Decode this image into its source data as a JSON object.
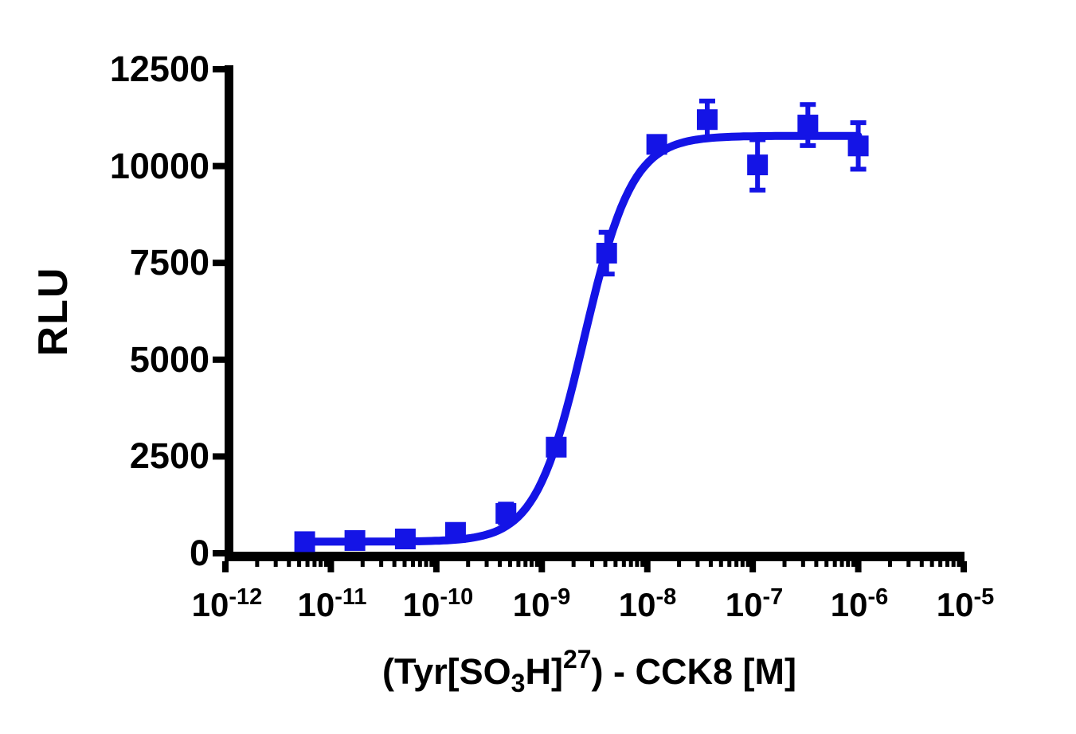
{
  "figure": {
    "background": "#ffffff",
    "axis_color": "#000000",
    "accent_blue": "#1414e6"
  },
  "chart_data": {
    "type": "scatter",
    "title": "",
    "xlabel": "(Tyr[SO3H]27) - CCK8 [M]",
    "xlabel_parts": {
      "pre": "(Tyr[SO",
      "sub": "3",
      "mid": "H]",
      "sup": "27",
      "post": ") - CCK8 [M]"
    },
    "ylabel": "RLU",
    "x_scale": "log",
    "xlim_log10": [
      -12,
      -5
    ],
    "ylim": [
      0,
      12500
    ],
    "grid": false,
    "legend": "none",
    "y_ticks": [
      0,
      2500,
      5000,
      7500,
      10000,
      12500
    ],
    "y_tick_labels": [
      "0",
      "2500",
      "5000",
      "7500",
      "10000",
      "12500"
    ],
    "x_major_ticks_log10": [
      -12,
      -11,
      -10,
      -9,
      -8,
      -7,
      -6,
      -5
    ],
    "x_tick_labels": [
      {
        "base": "10",
        "exp": "-12"
      },
      {
        "base": "10",
        "exp": "-11"
      },
      {
        "base": "10",
        "exp": "-10"
      },
      {
        "base": "10",
        "exp": "-9"
      },
      {
        "base": "10",
        "exp": "-8"
      },
      {
        "base": "10",
        "exp": "-7"
      },
      {
        "base": "10",
        "exp": "-6"
      },
      {
        "base": "10",
        "exp": "-5"
      }
    ],
    "series": [
      {
        "name": "(Tyr[SO3H]27)-CCK8",
        "marker": "square",
        "color": "#1414e6",
        "points": [
          {
            "conc_M": 5.65e-12,
            "rlu": 300,
            "sem": 60
          },
          {
            "conc_M": 1.69e-11,
            "rlu": 330,
            "sem": 60
          },
          {
            "conc_M": 5.08e-11,
            "rlu": 370,
            "sem": 70
          },
          {
            "conc_M": 1.52e-10,
            "rlu": 540,
            "sem": 90
          },
          {
            "conc_M": 4.57e-10,
            "rlu": 1030,
            "sem": 240
          },
          {
            "conc_M": 1.37e-09,
            "rlu": 2740,
            "sem": 160
          },
          {
            "conc_M": 4.12e-09,
            "rlu": 7750,
            "sem": 540
          },
          {
            "conc_M": 1.23e-08,
            "rlu": 10560,
            "sem": 180
          },
          {
            "conc_M": 3.7e-08,
            "rlu": 11200,
            "sem": 480
          },
          {
            "conc_M": 1.11e-07,
            "rlu": 10030,
            "sem": 650
          },
          {
            "conc_M": 3.33e-07,
            "rlu": 11060,
            "sem": 530
          },
          {
            "conc_M": 1e-06,
            "rlu": 10520,
            "sem": 600
          }
        ]
      }
    ],
    "fit_curve": {
      "model": "4PL sigmoidal dose-response",
      "bottom_rlu": 300,
      "top_rlu": 10780,
      "log10_ec50": -8.6,
      "hill_slope": 1.9,
      "log10_x_start": -11.248,
      "log10_x_end": -6.0
    }
  }
}
